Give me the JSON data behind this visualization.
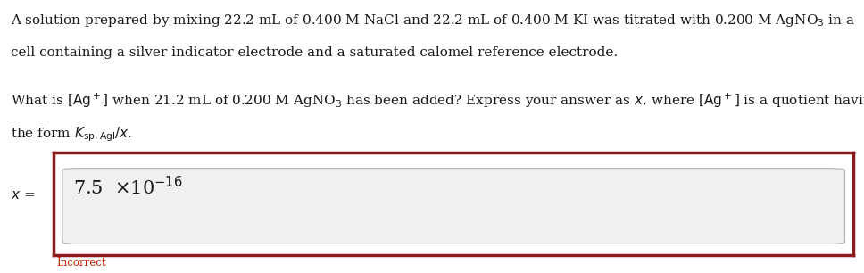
{
  "bg_color": "#ffffff",
  "text_color": "#1a1a1a",
  "red_color": "#8B1A1A",
  "incorrect_color": "#cc2200",
  "fontsize_main": 11.0,
  "fontsize_answer": 15,
  "fontsize_incorrect": 8.5,
  "fig_width": 9.68,
  "fig_height": 3.06,
  "dpi": 100
}
